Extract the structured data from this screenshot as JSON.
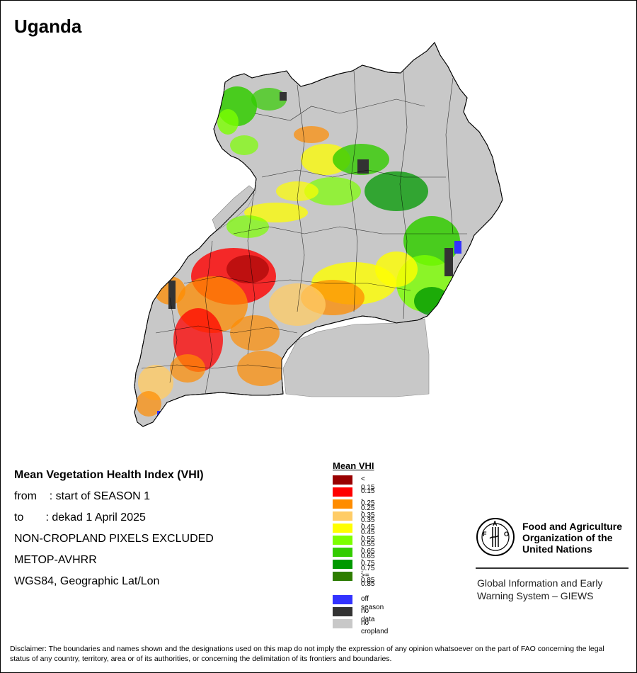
{
  "map": {
    "title": "Uganda"
  },
  "info": {
    "heading": "Mean Vegetation Health Index (VHI)",
    "from_line": "from    : start of SEASON 1",
    "to_line": "to       : dekad 1 April 2025",
    "line_cropland": "NON-CROPLAND PIXELS EXCLUDED",
    "line_sensor": "METOP-AVHRR",
    "line_projection": "WGS84, Geographic Lat/Lon"
  },
  "legend": {
    "title": "Mean VHI",
    "classes": [
      {
        "label": "< 0.15",
        "color": "#990000"
      },
      {
        "label": "0.15 - 0.25",
        "color": "#ff0000"
      },
      {
        "label": "0.25 - 0.35",
        "color": "#ff8c00"
      },
      {
        "label": "0.35 - 0.45",
        "color": "#ffcc66"
      },
      {
        "label": "0.45 - 0.55",
        "color": "#ffff00"
      },
      {
        "label": "0.55 - 0.65",
        "color": "#7cff00"
      },
      {
        "label": "0.65 - 0.75",
        "color": "#33cc00"
      },
      {
        "label": "0.75 - 0.85",
        "color": "#009900"
      },
      {
        "label": ">= 0.85",
        "color": "#2e7d00"
      }
    ],
    "extra": [
      {
        "label": "off season",
        "color": "#3333ff"
      },
      {
        "label": "no data",
        "color": "#333333"
      },
      {
        "label": "no cropland",
        "color": "#c8c8c8"
      }
    ]
  },
  "fao": {
    "name_line1": "Food and Agriculture",
    "name_line2": "Organization of the",
    "name_line3": "United Nations",
    "giews_line1": "Global Information and Early",
    "giews_line2": "Warning System – GIEWS"
  },
  "disclaimer": "Disclaimer: The boundaries and names shown and the designations used on this map do not imply the expression of any opinion whatsoever on the part of FAO concerning the legal status of any country, territory, area or of its authorities, or concerning the delimitation of its frontiers and boundaries."
}
